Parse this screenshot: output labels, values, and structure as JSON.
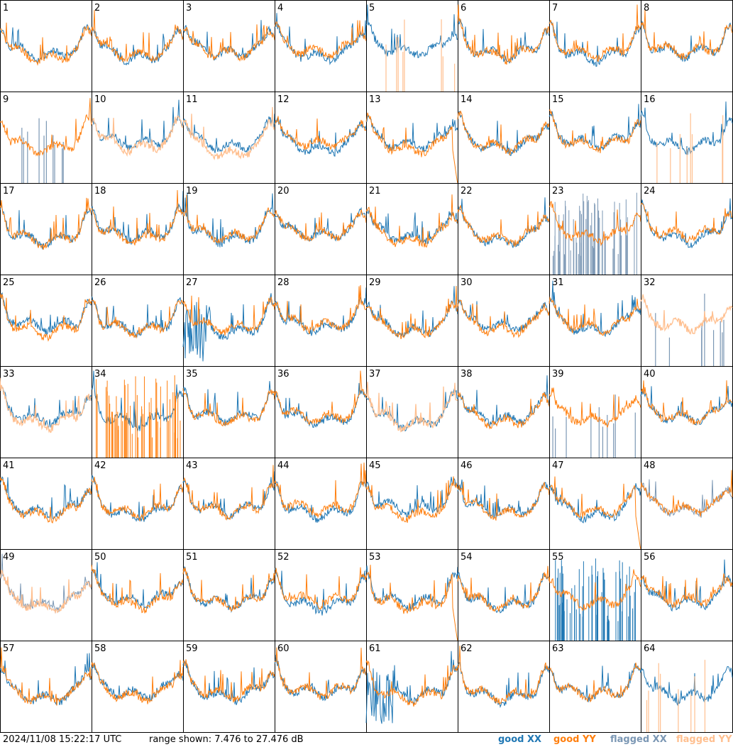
{
  "chart_data": {
    "type": "line",
    "panels": [
      "1",
      "2",
      "3",
      "4",
      "5",
      "6",
      "7",
      "8",
      "9",
      "10",
      "11",
      "12",
      "13",
      "14",
      "15",
      "16",
      "17",
      "18",
      "19",
      "20",
      "21",
      "22",
      "23",
      "24",
      "25",
      "26",
      "27",
      "28",
      "29",
      "30",
      "31",
      "32",
      "33",
      "34",
      "35",
      "36",
      "37",
      "38",
      "39",
      "40",
      "41",
      "42",
      "43",
      "44",
      "45",
      "46",
      "47",
      "48",
      "49",
      "50",
      "51",
      "52",
      "53",
      "54",
      "55",
      "56",
      "57",
      "58",
      "59",
      "60",
      "61",
      "62",
      "63",
      "64"
    ],
    "ylim": [
      7.476,
      27.476
    ],
    "yunit": "dB",
    "legend_position": "bottom-right",
    "series": [
      {
        "name": "good XX",
        "color": "#1f77b4"
      },
      {
        "name": "good YY",
        "color": "#ff7f0e"
      },
      {
        "name": "flagged XX",
        "color": "#7b97b4"
      },
      {
        "name": "flagged YY",
        "color": "#ffbf8f"
      }
    ]
  },
  "footer": {
    "timestamp": "2024/11/08 15:22:17 UTC",
    "range": "range shown: 7.476 to 27.476 dB",
    "legend": {
      "good_xx": "good XX",
      "good_yy": "good YY",
      "flagged_xx": "flagged XX",
      "flagged_yy": "flagged YY"
    }
  }
}
